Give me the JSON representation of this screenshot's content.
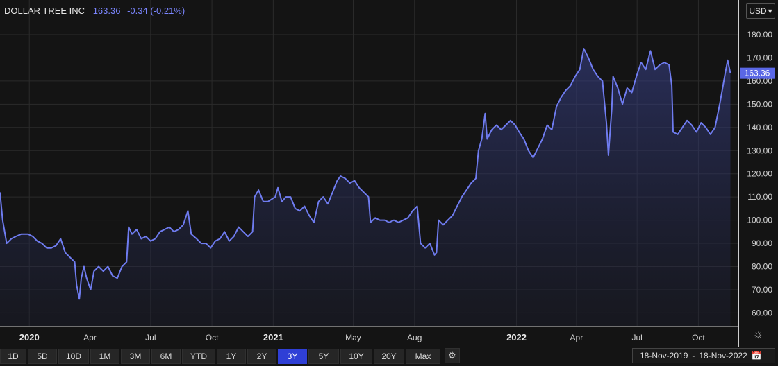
{
  "header": {
    "name": "DOLLAR TREE INC",
    "price": "163.36",
    "change": "-0.34 (-0.21%)"
  },
  "currency": {
    "label": "USD",
    "icon": "chevron-down-icon"
  },
  "price_badge": "163.36",
  "toolbar": {
    "ranges": [
      "1D",
      "5D",
      "10D",
      "1M",
      "3M",
      "6M",
      "YTD",
      "1Y",
      "2Y",
      "3Y",
      "5Y",
      "10Y",
      "20Y",
      "Max"
    ],
    "active": "3Y",
    "settings_icon": "gear-icon"
  },
  "date_range": {
    "from": "18-Nov-2019",
    "separator": "-",
    "to": "18-Nov-2022",
    "icon": "calendar-icon"
  },
  "theme_icon": "sun-icon",
  "colors": {
    "line": "#6f7cf0",
    "active_button": "#2f3fd6",
    "background": "#141414"
  },
  "chart_data": {
    "type": "area",
    "title": "DOLLAR TREE INC",
    "xlabel": "",
    "ylabel": "",
    "ylim": [
      55,
      188
    ],
    "y_ticks": [
      "60.00",
      "70.00",
      "80.00",
      "90.00",
      "100.00",
      "110.00",
      "120.00",
      "130.00",
      "140.00",
      "150.00",
      "160.00",
      "170.00",
      "180.00"
    ],
    "x_ticks": [
      {
        "label": "2020",
        "date": "2020-01-01",
        "bold": true
      },
      {
        "label": "Apr",
        "date": "2020-04-01",
        "bold": false
      },
      {
        "label": "Jul",
        "date": "2020-07-01",
        "bold": false
      },
      {
        "label": "Oct",
        "date": "2020-10-01",
        "bold": false
      },
      {
        "label": "2021",
        "date": "2021-01-01",
        "bold": true
      },
      {
        "label": "May",
        "date": "2021-05-01",
        "bold": false
      },
      {
        "label": "Aug",
        "date": "2021-08-01",
        "bold": false
      },
      {
        "label": "2022",
        "date": "2022-01-01",
        "bold": true
      },
      {
        "label": "Apr",
        "date": "2022-04-01",
        "bold": false
      },
      {
        "label": "Jul",
        "date": "2022-07-01",
        "bold": false
      },
      {
        "label": "Oct",
        "date": "2022-10-01",
        "bold": false
      }
    ],
    "grid": true,
    "series": [
      {
        "name": "",
        "points": [
          [
            "2019-11-18",
            112
          ],
          [
            "2019-11-22",
            100
          ],
          [
            "2019-11-28",
            90
          ],
          [
            "2019-12-05",
            92
          ],
          [
            "2019-12-12",
            93
          ],
          [
            "2019-12-20",
            94
          ],
          [
            "2019-12-30",
            94
          ],
          [
            "2020-01-06",
            93
          ],
          [
            "2020-01-13",
            91
          ],
          [
            "2020-01-20",
            90
          ],
          [
            "2020-01-27",
            88
          ],
          [
            "2020-02-03",
            88
          ],
          [
            "2020-02-10",
            89
          ],
          [
            "2020-02-17",
            92
          ],
          [
            "2020-02-24",
            86
          ],
          [
            "2020-03-02",
            84
          ],
          [
            "2020-03-09",
            82
          ],
          [
            "2020-03-12",
            72
          ],
          [
            "2020-03-16",
            66
          ],
          [
            "2020-03-19",
            75
          ],
          [
            "2020-03-23",
            80
          ],
          [
            "2020-03-27",
            75
          ],
          [
            "2020-04-02",
            70
          ],
          [
            "2020-04-07",
            78
          ],
          [
            "2020-04-14",
            80
          ],
          [
            "2020-04-21",
            78
          ],
          [
            "2020-04-28",
            80
          ],
          [
            "2020-05-05",
            76
          ],
          [
            "2020-05-12",
            75
          ],
          [
            "2020-05-19",
            80
          ],
          [
            "2020-05-26",
            82
          ],
          [
            "2020-05-29",
            97
          ],
          [
            "2020-06-03",
            94
          ],
          [
            "2020-06-10",
            96
          ],
          [
            "2020-06-17",
            92
          ],
          [
            "2020-06-24",
            93
          ],
          [
            "2020-07-01",
            91
          ],
          [
            "2020-07-08",
            92
          ],
          [
            "2020-07-15",
            95
          ],
          [
            "2020-07-22",
            96
          ],
          [
            "2020-07-29",
            97
          ],
          [
            "2020-08-05",
            95
          ],
          [
            "2020-08-12",
            96
          ],
          [
            "2020-08-19",
            98
          ],
          [
            "2020-08-26",
            104
          ],
          [
            "2020-08-31",
            94
          ],
          [
            "2020-09-08",
            92
          ],
          [
            "2020-09-15",
            90
          ],
          [
            "2020-09-22",
            90
          ],
          [
            "2020-09-29",
            88
          ],
          [
            "2020-10-06",
            91
          ],
          [
            "2020-10-13",
            92
          ],
          [
            "2020-10-20",
            95
          ],
          [
            "2020-10-27",
            91
          ],
          [
            "2020-11-03",
            93
          ],
          [
            "2020-11-10",
            97
          ],
          [
            "2020-11-17",
            95
          ],
          [
            "2020-11-24",
            93
          ],
          [
            "2020-12-01",
            95
          ],
          [
            "2020-12-04",
            110
          ],
          [
            "2020-12-10",
            113
          ],
          [
            "2020-12-17",
            108
          ],
          [
            "2020-12-24",
            108
          ],
          [
            "2021-01-04",
            110
          ],
          [
            "2021-01-08",
            114
          ],
          [
            "2021-01-14",
            108
          ],
          [
            "2021-01-20",
            110
          ],
          [
            "2021-01-27",
            110
          ],
          [
            "2021-02-03",
            105
          ],
          [
            "2021-02-10",
            104
          ],
          [
            "2021-02-17",
            106
          ],
          [
            "2021-02-24",
            102
          ],
          [
            "2021-03-03",
            99
          ],
          [
            "2021-03-10",
            108
          ],
          [
            "2021-03-17",
            110
          ],
          [
            "2021-03-24",
            107
          ],
          [
            "2021-03-31",
            112
          ],
          [
            "2021-04-07",
            117
          ],
          [
            "2021-04-12",
            119
          ],
          [
            "2021-04-19",
            118
          ],
          [
            "2021-04-26",
            116
          ],
          [
            "2021-05-03",
            117
          ],
          [
            "2021-05-10",
            114
          ],
          [
            "2021-05-17",
            112
          ],
          [
            "2021-05-24",
            110
          ],
          [
            "2021-05-27",
            99
          ],
          [
            "2021-06-03",
            101
          ],
          [
            "2021-06-10",
            100
          ],
          [
            "2021-06-17",
            100
          ],
          [
            "2021-06-24",
            99
          ],
          [
            "2021-07-01",
            100
          ],
          [
            "2021-07-08",
            99
          ],
          [
            "2021-07-15",
            100
          ],
          [
            "2021-07-22",
            101
          ],
          [
            "2021-07-29",
            104
          ],
          [
            "2021-08-05",
            106
          ],
          [
            "2021-08-10",
            90
          ],
          [
            "2021-08-17",
            88
          ],
          [
            "2021-08-24",
            90
          ],
          [
            "2021-08-31",
            85
          ],
          [
            "2021-09-03",
            86
          ],
          [
            "2021-09-06",
            100
          ],
          [
            "2021-09-13",
            98
          ],
          [
            "2021-09-20",
            100
          ],
          [
            "2021-09-27",
            102
          ],
          [
            "2021-10-04",
            106
          ],
          [
            "2021-10-11",
            110
          ],
          [
            "2021-10-18",
            113
          ],
          [
            "2021-10-25",
            116
          ],
          [
            "2021-11-01",
            118
          ],
          [
            "2021-11-05",
            130
          ],
          [
            "2021-11-10",
            135
          ],
          [
            "2021-11-15",
            146
          ],
          [
            "2021-11-18",
            135
          ],
          [
            "2021-11-25",
            139
          ],
          [
            "2021-12-02",
            141
          ],
          [
            "2021-12-09",
            139
          ],
          [
            "2021-12-16",
            141
          ],
          [
            "2021-12-23",
            143
          ],
          [
            "2021-12-30",
            141
          ],
          [
            "2022-01-05",
            138
          ],
          [
            "2022-01-12",
            135
          ],
          [
            "2022-01-19",
            130
          ],
          [
            "2022-01-26",
            127
          ],
          [
            "2022-02-02",
            131
          ],
          [
            "2022-02-09",
            135
          ],
          [
            "2022-02-16",
            141
          ],
          [
            "2022-02-23",
            139
          ],
          [
            "2022-03-02",
            149
          ],
          [
            "2022-03-09",
            153
          ],
          [
            "2022-03-16",
            156
          ],
          [
            "2022-03-23",
            158
          ],
          [
            "2022-03-30",
            162
          ],
          [
            "2022-04-06",
            165
          ],
          [
            "2022-04-12",
            174
          ],
          [
            "2022-04-19",
            170
          ],
          [
            "2022-04-26",
            165
          ],
          [
            "2022-05-03",
            162
          ],
          [
            "2022-05-10",
            160
          ],
          [
            "2022-05-16",
            142
          ],
          [
            "2022-05-19",
            128
          ],
          [
            "2022-05-24",
            148
          ],
          [
            "2022-05-26",
            162
          ],
          [
            "2022-06-02",
            157
          ],
          [
            "2022-06-09",
            150
          ],
          [
            "2022-06-16",
            157
          ],
          [
            "2022-06-23",
            155
          ],
          [
            "2022-06-30",
            162
          ],
          [
            "2022-07-07",
            168
          ],
          [
            "2022-07-14",
            165
          ],
          [
            "2022-07-21",
            173
          ],
          [
            "2022-07-28",
            165
          ],
          [
            "2022-08-04",
            167
          ],
          [
            "2022-08-11",
            168
          ],
          [
            "2022-08-18",
            167
          ],
          [
            "2022-08-22",
            158
          ],
          [
            "2022-08-24",
            138
          ],
          [
            "2022-08-31",
            137
          ],
          [
            "2022-09-07",
            140
          ],
          [
            "2022-09-14",
            143
          ],
          [
            "2022-09-21",
            141
          ],
          [
            "2022-09-28",
            138
          ],
          [
            "2022-10-05",
            142
          ],
          [
            "2022-10-12",
            140
          ],
          [
            "2022-10-19",
            137
          ],
          [
            "2022-10-26",
            140
          ],
          [
            "2022-11-02",
            150
          ],
          [
            "2022-11-07",
            158
          ],
          [
            "2022-11-10",
            163
          ],
          [
            "2022-11-14",
            169
          ],
          [
            "2022-11-18",
            163.36
          ]
        ]
      }
    ]
  }
}
